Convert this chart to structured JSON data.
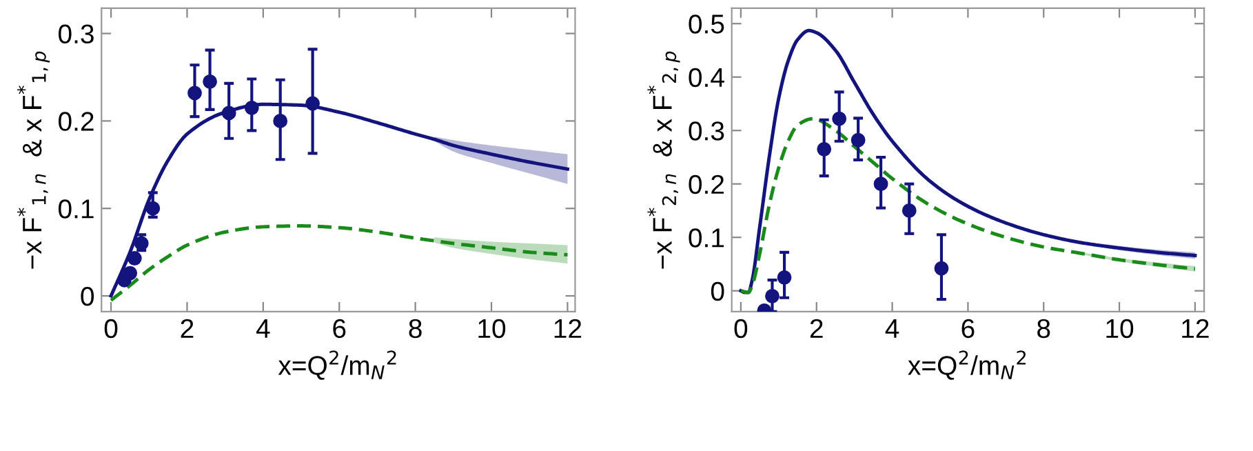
{
  "chart_data": [
    {
      "type": "line",
      "xlabel": "x=Q$^{2}$/m$_{N}$$^{2}$",
      "ylabel": "−x F$^{*}$$_{1,n}$  & x F$^{*}$$_{1,p}$",
      "xlim": [
        -0.25,
        12.2
      ],
      "ylim": [
        -0.018,
        0.329
      ],
      "xticks": [
        0,
        2,
        4,
        6,
        8,
        10,
        12
      ],
      "yticks": [
        0,
        0.1,
        0.2,
        0.3
      ],
      "grid": false,
      "legend": false,
      "series": [
        {
          "color": "#14147f",
          "line_style": "solid",
          "x": [
            0,
            0.5,
            1,
            1.5,
            2,
            3,
            4,
            5,
            6,
            7,
            8,
            8.5,
            9,
            10,
            11,
            12
          ],
          "values": [
            0,
            0.05,
            0.11,
            0.155,
            0.185,
            0.21,
            0.219,
            0.218,
            0.21,
            0.198,
            0.185,
            0.179,
            0.172,
            0.162,
            0.153,
            0.145
          ],
          "lower": [
            null,
            null,
            null,
            null,
            null,
            null,
            null,
            null,
            null,
            null,
            null,
            0.177,
            0.165,
            0.152,
            0.14,
            0.128
          ],
          "upper": [
            null,
            null,
            null,
            null,
            null,
            null,
            null,
            null,
            null,
            null,
            null,
            0.182,
            0.178,
            0.172,
            0.167,
            0.162
          ]
        },
        {
          "color": "#1a8a1a",
          "line_style": "dashed",
          "x": [
            0,
            0.5,
            1,
            1.5,
            2,
            3,
            4,
            5,
            6,
            7,
            8,
            8.5,
            9,
            10,
            11,
            12
          ],
          "values": [
            -0.005,
            0.012,
            0.03,
            0.045,
            0.058,
            0.073,
            0.079,
            0.08,
            0.078,
            0.073,
            0.066,
            0.063,
            0.06,
            0.055,
            0.05,
            0.047
          ],
          "lower": [
            null,
            null,
            null,
            null,
            null,
            null,
            null,
            null,
            null,
            null,
            null,
            0.061,
            0.055,
            0.048,
            0.042,
            0.037
          ],
          "upper": [
            null,
            null,
            null,
            null,
            null,
            null,
            null,
            null,
            null,
            null,
            null,
            0.067,
            0.065,
            0.062,
            0.06,
            0.058
          ]
        },
        {
          "type": "scatter",
          "color": "#14147f",
          "marker": "circle",
          "x": [
            0.35,
            0.5,
            0.62,
            0.8,
            1.1,
            2.2,
            2.6,
            3.1,
            3.7,
            4.45,
            5.3
          ],
          "values": [
            0.018,
            0.026,
            0.043,
            0.06,
            0.1,
            0.232,
            0.245,
            0.209,
            0.215,
            0.2,
            0.22
          ],
          "errors": [
            null,
            null,
            null,
            [
              0.052,
              0.07
            ],
            [
              0.09,
              0.118
            ],
            [
              0.205,
              0.264
            ],
            [
              0.213,
              0.281
            ],
            [
              0.18,
              0.243
            ],
            [
              0.189,
              0.248
            ],
            [
              0.156,
              0.247
            ],
            [
              0.163,
              0.282
            ]
          ]
        }
      ]
    },
    {
      "type": "line",
      "xlabel": "x=Q$^{2}$/m$_{N}$$^{2}$",
      "ylabel": "−x F$^{*}$$_{2,n}$  & x F$^{*}$$_{2,p}$",
      "xlim": [
        -0.24,
        12.24
      ],
      "ylim": [
        -0.039,
        0.529
      ],
      "xticks": [
        0,
        2,
        4,
        6,
        8,
        10,
        12
      ],
      "yticks": [
        0,
        0.1,
        0.2,
        0.3,
        0.4,
        0.5
      ],
      "grid": false,
      "legend": false,
      "series": [
        {
          "color": "#14147f",
          "line_style": "solid",
          "x": [
            0,
            0.1,
            0.2,
            0.3,
            0.5,
            0.75,
            1,
            1.25,
            1.5,
            1.8,
            2,
            2.5,
            3,
            3.5,
            4,
            5,
            6,
            7,
            8,
            9,
            10,
            11,
            12
          ],
          "values": [
            0,
            -0.003,
            -0.003,
            0.02,
            0.12,
            0.25,
            0.36,
            0.43,
            0.47,
            0.487,
            0.483,
            0.45,
            0.39,
            0.33,
            0.28,
            0.205,
            0.158,
            0.127,
            0.105,
            0.09,
            0.08,
            0.072,
            0.066
          ],
          "lower": [
            null,
            null,
            null,
            null,
            null,
            null,
            null,
            null,
            null,
            null,
            null,
            null,
            null,
            null,
            null,
            null,
            null,
            null,
            null,
            0.088,
            0.076,
            0.067,
            0.06
          ],
          "upper": [
            null,
            null,
            null,
            null,
            null,
            null,
            null,
            null,
            null,
            null,
            null,
            null,
            null,
            null,
            null,
            null,
            null,
            null,
            null,
            0.092,
            0.084,
            0.077,
            0.072
          ]
        },
        {
          "color": "#1a8a1a",
          "line_style": "dashed",
          "x": [
            0,
            0.2,
            0.3,
            0.5,
            0.75,
            1,
            1.25,
            1.5,
            1.9,
            2.5,
            3,
            3.5,
            4,
            5,
            6,
            7,
            8,
            9,
            10,
            11,
            12
          ],
          "values": [
            0,
            -0.003,
            0.01,
            0.07,
            0.16,
            0.23,
            0.28,
            0.31,
            0.322,
            0.3,
            0.27,
            0.24,
            0.21,
            0.16,
            0.125,
            0.1,
            0.082,
            0.07,
            0.058,
            0.049,
            0.041
          ],
          "lower": [
            null,
            null,
            null,
            null,
            null,
            null,
            null,
            null,
            null,
            null,
            null,
            null,
            null,
            null,
            null,
            null,
            null,
            0.068,
            0.055,
            0.045,
            0.036
          ],
          "upper": [
            null,
            null,
            null,
            null,
            null,
            null,
            null,
            null,
            null,
            null,
            null,
            null,
            null,
            null,
            null,
            null,
            null,
            0.072,
            0.061,
            0.053,
            0.046
          ]
        },
        {
          "type": "scatter",
          "color": "#14147f",
          "marker": "circle",
          "x": [
            0.62,
            0.83,
            1.15,
            2.2,
            2.6,
            3.1,
            3.7,
            4.45,
            5.3
          ],
          "values": [
            -0.037,
            -0.01,
            0.025,
            0.265,
            0.322,
            0.282,
            0.2,
            0.15,
            0.042
          ],
          "errors": [
            null,
            [
              -0.039,
              0.02
            ],
            [
              -0.013,
              0.072
            ],
            [
              0.215,
              0.32
            ],
            [
              0.28,
              0.372
            ],
            [
              0.245,
              0.323
            ],
            [
              0.155,
              0.25
            ],
            [
              0.107,
              0.2
            ],
            [
              -0.016,
              0.105
            ]
          ]
        }
      ]
    }
  ]
}
